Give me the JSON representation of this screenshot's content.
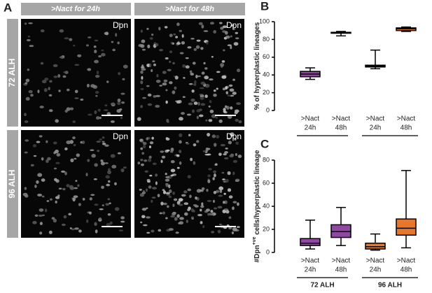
{
  "panel_a": {
    "label": "A",
    "columns": [
      ">Nact for 24h",
      ">Nact for 48h"
    ],
    "rows": [
      "72 ALH",
      "96 ALH"
    ],
    "image_labels": [
      "Dpn",
      "Dpn",
      "Dpn",
      "Dpn"
    ]
  },
  "chart_data": [
    {
      "type": "box",
      "panel_label": "B",
      "ylabel": [
        "% of hyperplastic lineages"
      ],
      "categories": [
        [
          ">Nact",
          "24h"
        ],
        [
          ">Nact",
          "48h"
        ],
        [
          ">Nact",
          "24h"
        ],
        [
          ">Nact",
          "48h"
        ]
      ],
      "boxes": [
        {
          "min": 35,
          "q1": 38,
          "median": 41,
          "q3": 44,
          "max": 48,
          "color": "#8e4a9e"
        },
        {
          "min": 84,
          "q1": 87,
          "median": 87.5,
          "q3": 88,
          "max": 89,
          "color": "#8e4a9e"
        },
        {
          "min": 47,
          "q1": 49,
          "median": 50,
          "q3": 51,
          "max": 68,
          "color": "#e8772e"
        },
        {
          "min": 89,
          "q1": 90,
          "median": 92,
          "q3": 93,
          "max": 94,
          "color": "#e8772e"
        }
      ],
      "ylim": [
        0,
        100
      ],
      "yticks": [
        0,
        20,
        40,
        60,
        80,
        100
      ]
    },
    {
      "type": "box",
      "panel_label": "C",
      "ylabel": [
        "#Dpn",
        "+ve",
        " cells/hyperplastic lineage"
      ],
      "categories": [
        [
          ">Nact",
          "24h"
        ],
        [
          ">Nact",
          "48h"
        ],
        [
          ">Nact",
          "24h"
        ],
        [
          ">Nact",
          "48h"
        ]
      ],
      "groups": [
        "72 ALH",
        "96 ALH"
      ],
      "boxes": [
        {
          "min": 3,
          "q1": 6,
          "median": 8,
          "q3": 12,
          "max": 28,
          "color": "#8e4a9e"
        },
        {
          "min": 6,
          "q1": 13,
          "median": 18,
          "q3": 24,
          "max": 39,
          "color": "#8e4a9e"
        },
        {
          "min": 2,
          "q1": 3,
          "median": 5,
          "q3": 8,
          "max": 16,
          "color": "#e8772e"
        },
        {
          "min": 4,
          "q1": 15,
          "median": 21,
          "q3": 29,
          "max": 71,
          "color": "#e8772e"
        }
      ],
      "ylim": [
        0,
        80
      ],
      "yticks": [
        0,
        20,
        40,
        60,
        80
      ]
    }
  ]
}
